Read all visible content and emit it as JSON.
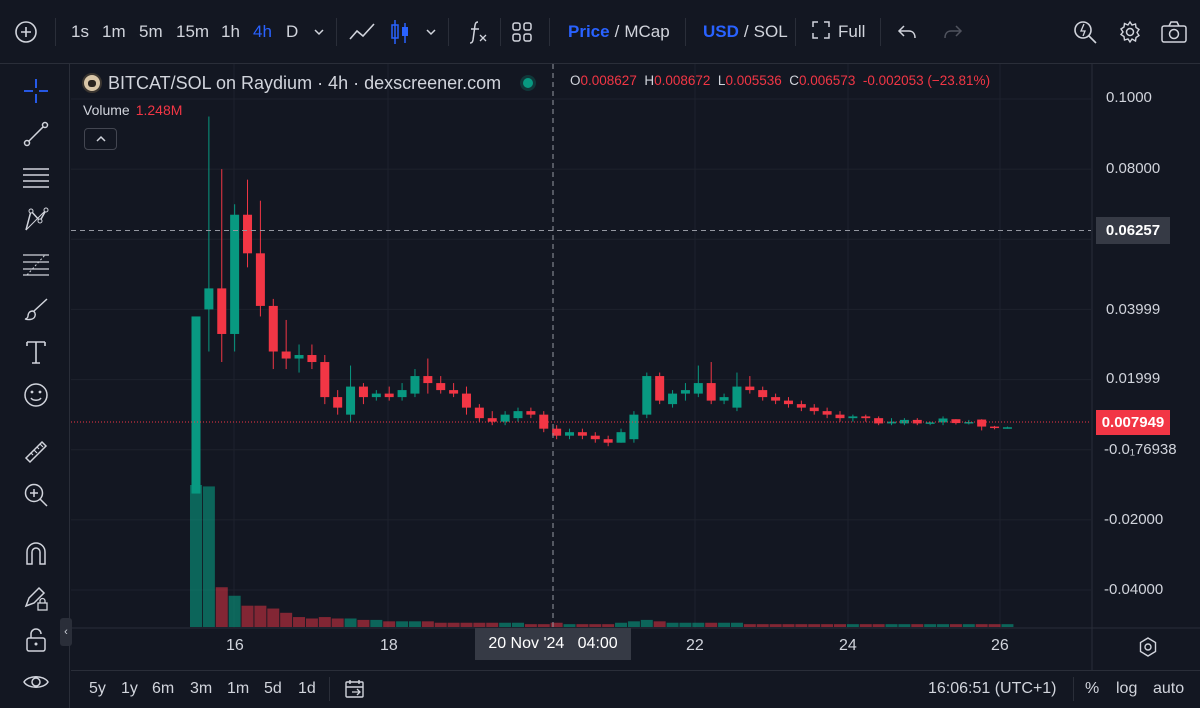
{
  "toolbar": {
    "intervals": [
      "1s",
      "1m",
      "5m",
      "15m",
      "1h",
      "4h",
      "D"
    ],
    "active_interval": "4h",
    "price_label": "Price",
    "mcap_label": "MCap",
    "usd_label": "USD",
    "sol_label": "SOL",
    "slash": "/",
    "full_label": "Full"
  },
  "legend": {
    "title": "BITCAT/SOL on Raydium · 4h · dexscreener.com",
    "o_label": "O",
    "o_value": "0.008627",
    "h_label": "H",
    "h_value": "0.008672",
    "l_label": "L",
    "l_value": "0.005536",
    "c_label": "C",
    "c_value": "0.006573",
    "change": "-0.002053 (−23.81%)",
    "volume_label": "Volume",
    "volume_value": "1.248M"
  },
  "price_scale": {
    "labels": [
      "0.1000",
      "0.08000",
      "0.03999",
      "0.01999",
      "-0.0₁76938",
      "-0.02000",
      "-0.04000"
    ],
    "crosshair_price": "0.06257",
    "last_price": "0.007949"
  },
  "time_axis": {
    "labels": [
      "16",
      "18",
      "22",
      "24",
      "26"
    ],
    "crosshair_time": "20 Nov '24   04:00"
  },
  "bottom": {
    "ranges": [
      "5y",
      "1y",
      "6m",
      "3m",
      "1m",
      "5d",
      "1d"
    ],
    "clock": "16:06:51 (UTC+1)",
    "percent": "%",
    "log": "log",
    "auto": "auto"
  },
  "colors": {
    "up": "#089981",
    "down": "#f23645",
    "accent": "#2962ff",
    "background": "#131722"
  },
  "chart_data": {
    "type": "candlestick",
    "title": "BITCAT/SOL on Raydium · 4h · dexscreener.com",
    "interval": "4h",
    "x_ticks": [
      "16",
      "18",
      "22",
      "24",
      "26"
    ],
    "ylim": [
      -0.05,
      0.105
    ],
    "candles": [
      {
        "o": -0.0125,
        "h": 0.038,
        "l": -0.0125,
        "c": 0.038
      },
      {
        "o": 0.04,
        "h": 0.095,
        "l": 0.028,
        "c": 0.046
      },
      {
        "o": 0.046,
        "h": 0.08,
        "l": 0.025,
        "c": 0.033
      },
      {
        "o": 0.033,
        "h": 0.07,
        "l": 0.028,
        "c": 0.067
      },
      {
        "o": 0.067,
        "h": 0.077,
        "l": 0.052,
        "c": 0.056
      },
      {
        "o": 0.056,
        "h": 0.071,
        "l": 0.038,
        "c": 0.041
      },
      {
        "o": 0.041,
        "h": 0.043,
        "l": 0.023,
        "c": 0.028
      },
      {
        "o": 0.028,
        "h": 0.037,
        "l": 0.023,
        "c": 0.026
      },
      {
        "o": 0.026,
        "h": 0.03,
        "l": 0.022,
        "c": 0.027
      },
      {
        "o": 0.027,
        "h": 0.03,
        "l": 0.023,
        "c": 0.025
      },
      {
        "o": 0.025,
        "h": 0.027,
        "l": 0.013,
        "c": 0.015
      },
      {
        "o": 0.015,
        "h": 0.017,
        "l": 0.01,
        "c": 0.012
      },
      {
        "o": 0.01,
        "h": 0.024,
        "l": 0.008,
        "c": 0.018
      },
      {
        "o": 0.018,
        "h": 0.019,
        "l": 0.013,
        "c": 0.015
      },
      {
        "o": 0.015,
        "h": 0.017,
        "l": 0.014,
        "c": 0.016
      },
      {
        "o": 0.016,
        "h": 0.018,
        "l": 0.014,
        "c": 0.015
      },
      {
        "o": 0.015,
        "h": 0.019,
        "l": 0.014,
        "c": 0.017
      },
      {
        "o": 0.016,
        "h": 0.023,
        "l": 0.015,
        "c": 0.021
      },
      {
        "o": 0.021,
        "h": 0.026,
        "l": 0.016,
        "c": 0.019
      },
      {
        "o": 0.019,
        "h": 0.021,
        "l": 0.016,
        "c": 0.017
      },
      {
        "o": 0.017,
        "h": 0.019,
        "l": 0.015,
        "c": 0.016
      },
      {
        "o": 0.016,
        "h": 0.018,
        "l": 0.01,
        "c": 0.012
      },
      {
        "o": 0.012,
        "h": 0.013,
        "l": 0.008,
        "c": 0.009
      },
      {
        "o": 0.009,
        "h": 0.011,
        "l": 0.007,
        "c": 0.008
      },
      {
        "o": 0.008,
        "h": 0.011,
        "l": 0.007,
        "c": 0.01
      },
      {
        "o": 0.009,
        "h": 0.012,
        "l": 0.008,
        "c": 0.011
      },
      {
        "o": 0.011,
        "h": 0.012,
        "l": 0.009,
        "c": 0.01
      },
      {
        "o": 0.01,
        "h": 0.011,
        "l": 0.005,
        "c": 0.006
      },
      {
        "o": 0.006,
        "h": 0.007,
        "l": 0.003,
        "c": 0.004
      },
      {
        "o": 0.004,
        "h": 0.006,
        "l": 0.003,
        "c": 0.005
      },
      {
        "o": 0.005,
        "h": 0.006,
        "l": 0.003,
        "c": 0.004
      },
      {
        "o": 0.004,
        "h": 0.005,
        "l": 0.002,
        "c": 0.003
      },
      {
        "o": 0.003,
        "h": 0.004,
        "l": 0.001,
        "c": 0.002
      },
      {
        "o": 0.002,
        "h": 0.006,
        "l": 0.002,
        "c": 0.005
      },
      {
        "o": 0.003,
        "h": 0.011,
        "l": 0.002,
        "c": 0.01
      },
      {
        "o": 0.01,
        "h": 0.022,
        "l": 0.009,
        "c": 0.021
      },
      {
        "o": 0.021,
        "h": 0.022,
        "l": 0.013,
        "c": 0.014
      },
      {
        "o": 0.013,
        "h": 0.017,
        "l": 0.012,
        "c": 0.016
      },
      {
        "o": 0.016,
        "h": 0.019,
        "l": 0.014,
        "c": 0.017
      },
      {
        "o": 0.016,
        "h": 0.024,
        "l": 0.015,
        "c": 0.019
      },
      {
        "o": 0.019,
        "h": 0.025,
        "l": 0.013,
        "c": 0.014
      },
      {
        "o": 0.014,
        "h": 0.016,
        "l": 0.013,
        "c": 0.015
      },
      {
        "o": 0.012,
        "h": 0.022,
        "l": 0.011,
        "c": 0.018
      },
      {
        "o": 0.018,
        "h": 0.021,
        "l": 0.016,
        "c": 0.017
      },
      {
        "o": 0.017,
        "h": 0.018,
        "l": 0.014,
        "c": 0.015
      },
      {
        "o": 0.015,
        "h": 0.016,
        "l": 0.013,
        "c": 0.014
      },
      {
        "o": 0.014,
        "h": 0.015,
        "l": 0.012,
        "c": 0.013
      },
      {
        "o": 0.013,
        "h": 0.014,
        "l": 0.011,
        "c": 0.012
      },
      {
        "o": 0.012,
        "h": 0.013,
        "l": 0.01,
        "c": 0.011
      },
      {
        "o": 0.011,
        "h": 0.012,
        "l": 0.009,
        "c": 0.01
      },
      {
        "o": 0.01,
        "h": 0.011,
        "l": 0.008,
        "c": 0.009
      },
      {
        "o": 0.009,
        "h": 0.01,
        "l": 0.008,
        "c": 0.0095
      },
      {
        "o": 0.0095,
        "h": 0.01,
        "l": 0.008,
        "c": 0.009
      },
      {
        "o": 0.009,
        "h": 0.0095,
        "l": 0.007,
        "c": 0.0075
      },
      {
        "o": 0.0075,
        "h": 0.009,
        "l": 0.007,
        "c": 0.008
      },
      {
        "o": 0.0075,
        "h": 0.009,
        "l": 0.007,
        "c": 0.0085
      },
      {
        "o": 0.0085,
        "h": 0.009,
        "l": 0.007,
        "c": 0.0075
      },
      {
        "o": 0.0075,
        "h": 0.008,
        "l": 0.007,
        "c": 0.0078
      },
      {
        "o": 0.0078,
        "h": 0.0095,
        "l": 0.007,
        "c": 0.0089
      },
      {
        "o": 0.0087,
        "h": 0.0087,
        "l": 0.0072,
        "c": 0.0076
      },
      {
        "o": 0.0076,
        "h": 0.0085,
        "l": 0.0072,
        "c": 0.0079
      },
      {
        "o": 0.0086,
        "h": 0.0087,
        "l": 0.0055,
        "c": 0.0066
      },
      {
        "o": 0.0066,
        "h": 0.0068,
        "l": 0.0058,
        "c": 0.0062
      },
      {
        "o": 0.0062,
        "h": 0.0066,
        "l": 0.006,
        "c": 0.0064
      }
    ],
    "volume": [
      1.0,
      0.99,
      0.28,
      0.22,
      0.15,
      0.15,
      0.13,
      0.1,
      0.07,
      0.06,
      0.07,
      0.06,
      0.06,
      0.05,
      0.05,
      0.04,
      0.04,
      0.04,
      0.04,
      0.03,
      0.03,
      0.03,
      0.03,
      0.03,
      0.03,
      0.03,
      0.02,
      0.02,
      0.03,
      0.02,
      0.02,
      0.02,
      0.02,
      0.03,
      0.04,
      0.05,
      0.04,
      0.03,
      0.03,
      0.03,
      0.03,
      0.03,
      0.03,
      0.02,
      0.02,
      0.02,
      0.02,
      0.02,
      0.02,
      0.02,
      0.02,
      0.02,
      0.02,
      0.02,
      0.02,
      0.02,
      0.02,
      0.02,
      0.02,
      0.02,
      0.02,
      0.02,
      0.02,
      0.02
    ],
    "volume_up": [
      true,
      true,
      false,
      true,
      false,
      false,
      false,
      false,
      false,
      false,
      false,
      false,
      true,
      false,
      true,
      false,
      true,
      true,
      false,
      false,
      false,
      false,
      false,
      false,
      true,
      true,
      false,
      false,
      false,
      true,
      false,
      false,
      false,
      true,
      true,
      true,
      false,
      true,
      true,
      true,
      false,
      true,
      true,
      false,
      false,
      false,
      false,
      false,
      false,
      false,
      false,
      true,
      false,
      false,
      true,
      true,
      false,
      true,
      true,
      false,
      true,
      false,
      false,
      true
    ]
  }
}
